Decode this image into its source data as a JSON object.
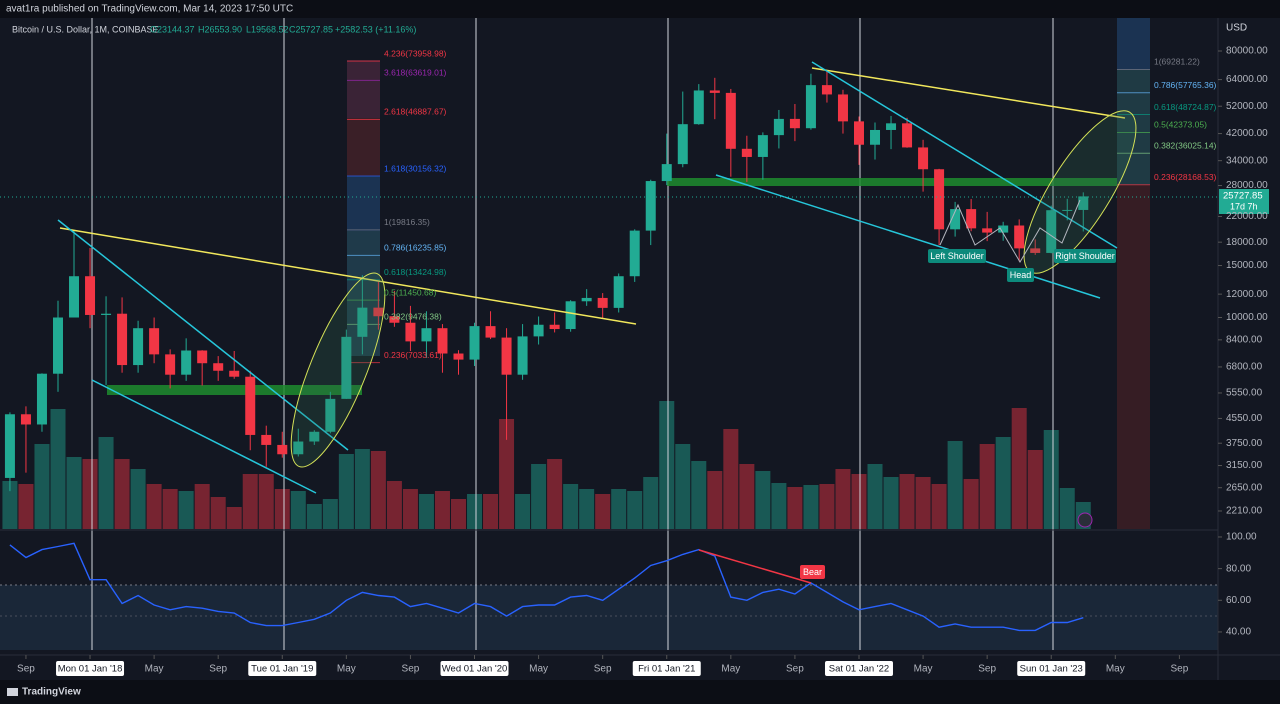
{
  "header": {
    "publisher": "avat1ra published on TradingView.com, Mar 14, 2023 17:50 UTC",
    "logo": "TradingView"
  },
  "chart_data": {
    "type": "candlestick",
    "legend": {
      "symbol": "Bitcoin / U.S. Dollar, 1M, COINBASE",
      "open": "O23144.37",
      "high": "H26553.90",
      "low": "L19568.52",
      "close": "C25727.85",
      "change": "+2582.53 (+11.16%)"
    },
    "axis_title": "USD",
    "price_tag": "25727.85",
    "countdown": "17d 7h",
    "up_color": "#22ab94",
    "down_color": "#f23645",
    "log_scale": true,
    "open": [
      2860,
      4700,
      4340,
      6450,
      10000,
      13800,
      10200,
      10300,
      6900,
      9200,
      7500,
      6400,
      7730,
      7000,
      6600,
      6300,
      4000,
      3700,
      3440,
      3800,
      4100,
      5300,
      8600,
      10800,
      10100,
      9600,
      8300,
      9200,
      7550,
      7200,
      9350,
      8550,
      6400,
      8630,
      9450,
      9140,
      11350,
      11650,
      10780,
      13800,
      19700,
      29000,
      33100,
      45200,
      58800,
      57700,
      37300,
      35000,
      41500,
      47100,
      43800,
      61300,
      57000,
      46200,
      38500,
      43200,
      45500,
      37700,
      31800,
      19900,
      23300,
      20050,
      19400,
      20500,
      17150,
      16550,
      23100,
      23144.37
    ],
    "high": [
      4770,
      5000,
      6470,
      11400,
      19800,
      17200,
      11800,
      11700,
      9750,
      10000,
      7800,
      8500,
      7750,
      7400,
      7700,
      6600,
      4300,
      4100,
      4200,
      4150,
      5600,
      9100,
      13900,
      13200,
      12300,
      10950,
      10500,
      9500,
      7750,
      9600,
      10500,
      9200,
      9500,
      10080,
      10400,
      11450,
      12480,
      12100,
      14100,
      19900,
      29300,
      42000,
      58300,
      61800,
      64900,
      59500,
      41300,
      42400,
      50500,
      52900,
      67000,
      69000,
      59100,
      47990,
      45800,
      48200,
      47500,
      40000,
      31900,
      24650,
      25200,
      22800,
      21100,
      21500,
      18400,
      23950,
      25250,
      26553.9
    ],
    "low": [
      2580,
      2980,
      4100,
      5600,
      10700,
      9200,
      5900,
      6500,
      6500,
      7000,
      5750,
      6100,
      5880,
      6100,
      6200,
      3550,
      3120,
      3350,
      3380,
      3700,
      4050,
      5300,
      7500,
      9100,
      9300,
      7700,
      7300,
      6500,
      6400,
      6850,
      8450,
      3850,
      6150,
      8100,
      8900,
      8950,
      10950,
      9900,
      10400,
      13200,
      17600,
      28100,
      32300,
      45000,
      47000,
      30000,
      28800,
      29300,
      37400,
      39600,
      43300,
      53500,
      42000,
      32900,
      34300,
      37200,
      37600,
      26700,
      17600,
      18800,
      19600,
      18150,
      18200,
      15500,
      16300,
      16500,
      21350,
      19568.52
    ],
    "close": [
      4700,
      4340,
      6450,
      10000,
      13800,
      10200,
      10300,
      6900,
      9200,
      7500,
      6400,
      7730,
      7000,
      6600,
      6300,
      4000,
      3700,
      3440,
      3800,
      4100,
      5300,
      8600,
      10800,
      10100,
      9600,
      8300,
      9200,
      7550,
      7200,
      9350,
      8550,
      6400,
      8630,
      9450,
      9140,
      11350,
      11650,
      10780,
      13800,
      19700,
      29000,
      33100,
      45200,
      58800,
      57700,
      37300,
      35000,
      41500,
      47100,
      43800,
      61300,
      57000,
      46200,
      38500,
      43200,
      45500,
      37700,
      31800,
      19900,
      23300,
      20050,
      19400,
      20500,
      17150,
      16550,
      23100,
      23150,
      25727.85
    ],
    "volume": [
      48,
      45,
      85,
      120,
      72,
      70,
      92,
      70,
      60,
      45,
      40,
      38,
      45,
      32,
      22,
      55,
      55,
      40,
      38,
      25,
      30,
      75,
      80,
      78,
      48,
      40,
      35,
      38,
      30,
      35,
      35,
      110,
      35,
      65,
      70,
      45,
      40,
      35,
      40,
      38,
      52,
      128,
      85,
      68,
      58,
      100,
      65,
      58,
      46,
      42,
      44,
      45,
      60,
      55,
      65,
      52,
      55,
      52,
      45,
      88,
      50,
      85,
      92,
      121,
      79,
      99,
      41,
      27
    ],
    "volume_lim": [
      0,
      511
    ],
    "xlim": [
      -0.62,
      75.41
    ],
    "xticks": [
      {
        "value": 1,
        "label": "Sep"
      },
      {
        "value": 5,
        "label": "Mon 01 Jan '18"
      },
      {
        "value": 9,
        "label": "May"
      },
      {
        "value": 13,
        "label": "Sep"
      },
      {
        "value": 17,
        "label": "Tue 01 Jan '19"
      },
      {
        "value": 21,
        "label": "May"
      },
      {
        "value": 25,
        "label": "Sep"
      },
      {
        "value": 29,
        "label": "Wed 01 Jan '20"
      },
      {
        "value": 33,
        "label": "May"
      },
      {
        "value": 37,
        "label": "Sep"
      },
      {
        "value": 41,
        "label": "Fri 01 Jan '21"
      },
      {
        "value": 45,
        "label": "May"
      },
      {
        "value": 49,
        "label": "Sep"
      },
      {
        "value": 53,
        "label": "Sat 01 Jan '22"
      },
      {
        "value": 57,
        "label": "May"
      },
      {
        "value": 61,
        "label": "Sep"
      },
      {
        "value": 65,
        "label": "Sun 01 Jan '23"
      },
      {
        "value": 69,
        "label": "May"
      },
      {
        "value": 73,
        "label": "Sep"
      }
    ],
    "ylim": [
      1920,
      103500
    ],
    "yticks": [
      {
        "value": 80000,
        "label": "80000.00"
      },
      {
        "value": 64000,
        "label": "64000.00"
      },
      {
        "value": 52000,
        "label": "52000.00"
      },
      {
        "value": 42000,
        "label": "42000.00"
      },
      {
        "value": 34000,
        "label": "34000.00"
      },
      {
        "value": 28000,
        "label": "28000.00"
      },
      {
        "value": 22000,
        "label": "22000.00"
      },
      {
        "value": 18000,
        "label": "18000.00"
      },
      {
        "value": 15000,
        "label": "15000.00"
      },
      {
        "value": 12000,
        "label": "12000.00"
      },
      {
        "value": 10000,
        "label": "10000.00"
      },
      {
        "value": 8400,
        "label": "8400.00"
      },
      {
        "value": 6800,
        "label": "6800.00"
      },
      {
        "value": 5550,
        "label": "5550.00"
      },
      {
        "value": 4550,
        "label": "4550.00"
      },
      {
        "value": 3750,
        "label": "3750.00"
      },
      {
        "value": 3150,
        "label": "3150.00"
      },
      {
        "value": 2650,
        "label": "2650.00"
      },
      {
        "value": 2210,
        "label": "2210.00"
      }
    ],
    "fib_left": [
      {
        "price": 73958.98,
        "label": "4.236(73958.98)",
        "color": "#f23645"
      },
      {
        "price": 63619.01,
        "label": "3.618(63619.01)",
        "color": "#9c27b0"
      },
      {
        "price": 46887.67,
        "label": "2.618(46887.67)",
        "color": "#f23645"
      },
      {
        "price": 30156.32,
        "label": "1.618(30156.32)",
        "color": "#2962ff"
      },
      {
        "price": 19816.35,
        "label": "1(19816.35)",
        "color": "#787b86"
      },
      {
        "price": 16235.85,
        "label": "0.786(16235.85)",
        "color": "#64b5f6"
      },
      {
        "price": 13424.98,
        "label": "0.618(13424.98)",
        "color": "#089981"
      },
      {
        "price": 11450.68,
        "label": "0.5(11450.68)",
        "color": "#4caf50"
      },
      {
        "price": 9476.38,
        "label": "0.382(9476.38)",
        "color": "#81c784"
      },
      {
        "price": 7033.61,
        "label": "0.236(7033.61)",
        "color": "#f23645"
      }
    ],
    "fib_right": [
      {
        "price": 69281.22,
        "label": "1(69281.22)",
        "color": "#787b86"
      },
      {
        "price": 57765.36,
        "label": "0.786(57765.36)",
        "color": "#64b5f6"
      },
      {
        "price": 48724.87,
        "label": "0.618(48724.87)",
        "color": "#089981"
      },
      {
        "price": 42373.05,
        "label": "0.5(42373.05)",
        "color": "#4caf50"
      },
      {
        "price": 36025.14,
        "label": "0.382(36025.14)",
        "color": "#81c784"
      },
      {
        "price": 28168.53,
        "label": "0.236(28168.53)",
        "color": "#f23645"
      }
    ],
    "annotations": {
      "left_shoulder": "Left Shoulder",
      "head": "Head",
      "right_shoulder": "Right Shoulder",
      "bear": "Bear"
    },
    "rsi": {
      "color": "#2962ff",
      "values": [
        95,
        87,
        92,
        94,
        96,
        73,
        73,
        58,
        63,
        57,
        54,
        56,
        55,
        53,
        52,
        46,
        44,
        44,
        46,
        48,
        52,
        60,
        65,
        63,
        62,
        56,
        58,
        55,
        52,
        58,
        56,
        50,
        56,
        57,
        57,
        62,
        63,
        60,
        67,
        74,
        82,
        85,
        89,
        92,
        88,
        62,
        60,
        65,
        67,
        64,
        71,
        65,
        59,
        54,
        56,
        58,
        54,
        50,
        43,
        45,
        43,
        43,
        43,
        41,
        41,
        46,
        46,
        49
      ],
      "ylim": [
        28.6,
        104.4
      ],
      "yticks": [
        {
          "value": 100,
          "label": "100.00"
        },
        {
          "value": 80,
          "label": "80.00"
        },
        {
          "value": 60,
          "label": "60.00"
        },
        {
          "value": 40,
          "label": "40.00"
        }
      ]
    }
  }
}
